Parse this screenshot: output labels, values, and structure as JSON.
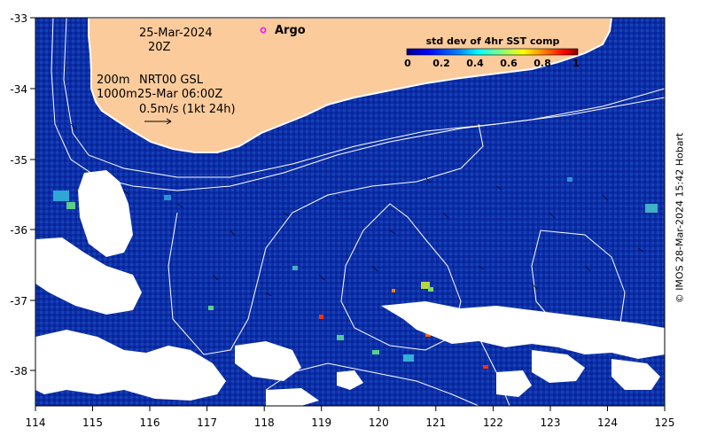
{
  "map": {
    "date": "25-Mar-2024",
    "hour": "20Z",
    "depth_contours": "200m\n1000m",
    "product": "NRT00 GSL",
    "vector_time": "25-Mar 06:00Z",
    "vector_scale": "0.5m/s (1kt 24h)",
    "argo_label": "Argo",
    "x_ticks": [
      "114",
      "115",
      "116",
      "117",
      "118",
      "119",
      "120",
      "121",
      "122",
      "123",
      "124",
      "125"
    ],
    "y_ticks": [
      "-33",
      "-34",
      "-35",
      "-36",
      "-37",
      "-38"
    ],
    "credit": "© IMOS 28-Mar-2024 15:42 Hobart"
  },
  "colorbar": {
    "title": "std dev of 4hr SST comp",
    "ticks": [
      "0",
      "0.2",
      "0.4",
      "0.6",
      "0.8",
      "1"
    ],
    "colors": [
      "#00008b",
      "#0000ff",
      "#0080ff",
      "#00ffff",
      "#80ff80",
      "#ffff00",
      "#ff8000",
      "#ff0000",
      "#800000"
    ]
  },
  "colors": {
    "sea": "#0a2a9c",
    "land": "#fbcb9c",
    "cloud": "#ffffff",
    "argo": "#ff00ff"
  }
}
